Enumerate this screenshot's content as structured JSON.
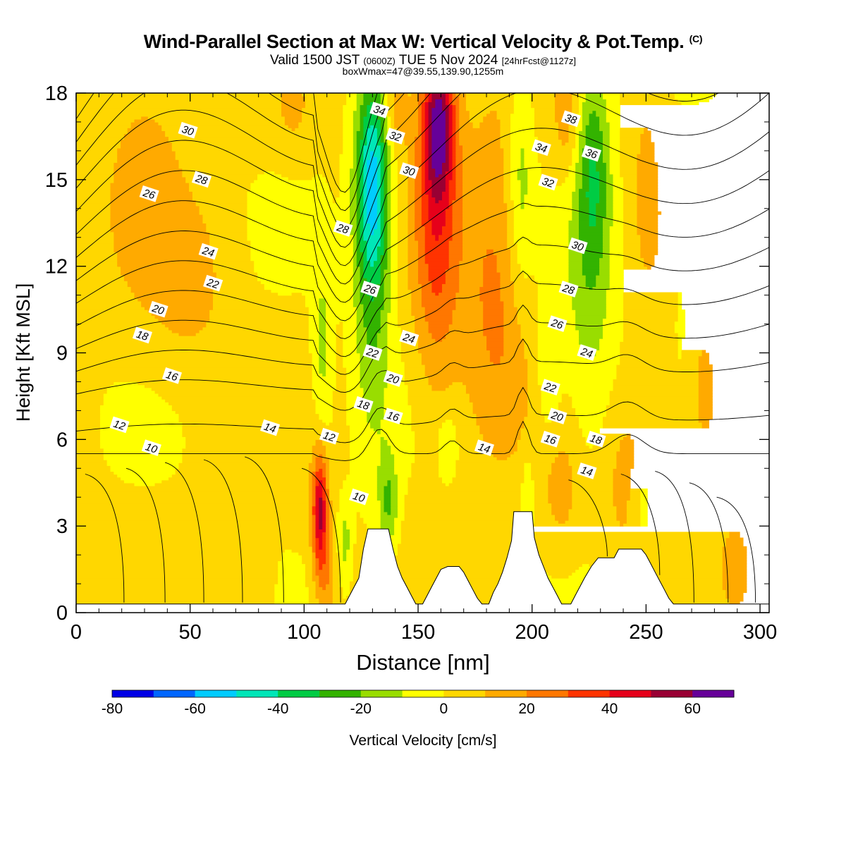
{
  "header": {
    "title_main": "Wind-Parallel Section at Max W: Vertical Velocity & Pot.Temp.",
    "title_copyright": "(C)",
    "subtitle_valid": "Valid 1500 JST",
    "subtitle_utc": "(0600Z)",
    "subtitle_date": "TUE 5 Nov 2024",
    "subtitle_fcst": "[24hrFcst@1127z]",
    "box_info": "boxWmax=47@39.55,139.90,1255m"
  },
  "chart_data": {
    "type": "heatmap",
    "xlabel": "Distance [nm]",
    "ylabel": "Height [Kft MSL]",
    "xlim": [
      0,
      304
    ],
    "ylim": [
      0,
      18
    ],
    "xticks": [
      0,
      50,
      100,
      150,
      200,
      250,
      300
    ],
    "yticks": [
      0,
      3,
      6,
      9,
      12,
      15,
      18
    ],
    "colorbar": {
      "label": "Vertical Velocity [cm/s]",
      "min": -80,
      "max": 70,
      "tick_values": [
        -80,
        -60,
        -40,
        -20,
        0,
        20,
        40,
        60
      ],
      "colors": [
        "#0000e6",
        "#0066ff",
        "#00ccff",
        "#00e6b8",
        "#00cc44",
        "#33b300",
        "#99dd00",
        "#ffff00",
        "#ffd700",
        "#ffaa00",
        "#ff7700",
        "#ff3300",
        "#e6001a",
        "#990033",
        "#660099"
      ]
    },
    "w_features": [
      {
        "x": 107,
        "z": 3.5,
        "w": 52,
        "dx": 2.5,
        "dz": 1.5
      },
      {
        "x": 159,
        "z": 17.0,
        "w": 48,
        "dx": 5,
        "dz": 1.8
      },
      {
        "x": 158,
        "z": 13.5,
        "w": 30,
        "dx": 7,
        "dz": 4
      },
      {
        "x": 130,
        "z": 15.0,
        "w": -45,
        "dx": 5,
        "dz": 2.5
      },
      {
        "x": 130,
        "z": 11.5,
        "w": -22,
        "dx": 6,
        "dz": 4
      },
      {
        "x": 108,
        "z": 9.0,
        "w": -15,
        "dx": 3,
        "dz": 2.5
      },
      {
        "x": 137,
        "z": 3.8,
        "w": -22,
        "dx": 3,
        "dz": 1.2
      },
      {
        "x": 118,
        "z": 2.5,
        "w": -15,
        "dx": 2,
        "dz": 1.0
      },
      {
        "x": 195,
        "z": 15.0,
        "w": -18,
        "dx": 4,
        "dz": 3
      },
      {
        "x": 227,
        "z": 15.5,
        "w": -25,
        "dx": 5,
        "dz": 2.5
      },
      {
        "x": 225,
        "z": 11.0,
        "w": -15,
        "dx": 8,
        "dz": 4
      },
      {
        "x": 207,
        "z": 8.5,
        "w": -14,
        "dx": 4,
        "dz": 2
      },
      {
        "x": 163,
        "z": 5.8,
        "w": -13,
        "dx": 3,
        "dz": 0.8
      },
      {
        "x": 198,
        "z": 4.3,
        "w": -13,
        "dx": 2,
        "dz": 1.0
      },
      {
        "x": 248,
        "z": 3.8,
        "w": -14,
        "dx": 4,
        "dz": 1.2
      },
      {
        "x": 265,
        "z": 10.0,
        "w": -10,
        "dx": 2,
        "dz": 1.5
      },
      {
        "x": 30,
        "z": 15.0,
        "w": 12,
        "dx": 12,
        "dz": 3
      },
      {
        "x": 50,
        "z": 11.5,
        "w": 12,
        "dx": 12,
        "dz": 2
      },
      {
        "x": 140,
        "z": 17.5,
        "w": 18,
        "dx": 4,
        "dz": 1.0
      },
      {
        "x": 183,
        "z": 13.0,
        "w": 14,
        "dx": 10,
        "dz": 4
      },
      {
        "x": 185,
        "z": 9.0,
        "w": 10,
        "dx": 12,
        "dz": 3
      },
      {
        "x": 243,
        "z": 4.5,
        "w": 14,
        "dx": 8,
        "dz": 2
      },
      {
        "x": 213,
        "z": 4.2,
        "w": 12,
        "dx": 6,
        "dz": 1.5
      },
      {
        "x": 275,
        "z": 7.0,
        "w": 12,
        "dx": 12,
        "dz": 3
      },
      {
        "x": 215,
        "z": 17.0,
        "w": 14,
        "dx": 4,
        "dz": 1.5
      },
      {
        "x": 95,
        "z": 17.5,
        "w": 10,
        "dx": 5,
        "dz": 1.0
      },
      {
        "x": 80,
        "z": 1.2,
        "w": 10,
        "dx": 4,
        "dz": 1.0
      },
      {
        "x": 290,
        "z": 1.5,
        "w": 10,
        "dx": 5,
        "dz": 1.2
      },
      {
        "x": 110,
        "z": 1.0,
        "w": 14,
        "dx": 3,
        "dz": 1.0
      },
      {
        "x": 250,
        "z": 15.0,
        "w": 10,
        "dx": 5,
        "dz": 3
      }
    ],
    "terrain": [
      [
        0,
        0.3
      ],
      [
        118,
        0.3
      ],
      [
        120,
        0.6
      ],
      [
        122,
        0.9
      ],
      [
        124,
        1.2
      ],
      [
        126,
        2.2
      ],
      [
        128,
        2.9
      ],
      [
        137,
        2.9
      ],
      [
        139,
        2.2
      ],
      [
        141,
        1.6
      ],
      [
        143,
        1.2
      ],
      [
        145,
        0.9
      ],
      [
        147,
        0.6
      ],
      [
        149,
        0.3
      ],
      [
        152,
        0.3
      ],
      [
        154,
        0.6
      ],
      [
        156,
        0.9
      ],
      [
        158,
        1.2
      ],
      [
        160,
        1.5
      ],
      [
        163,
        1.6
      ],
      [
        168,
        1.6
      ],
      [
        170,
        1.4
      ],
      [
        172,
        1.1
      ],
      [
        174,
        0.8
      ],
      [
        176,
        0.5
      ],
      [
        178,
        0.3
      ],
      [
        181,
        0.3
      ],
      [
        183,
        0.7
      ],
      [
        185,
        1.0
      ],
      [
        187,
        1.4
      ],
      [
        189,
        1.9
      ],
      [
        191,
        2.5
      ],
      [
        192,
        3.5
      ],
      [
        200,
        3.5
      ],
      [
        201,
        2.6
      ],
      [
        203,
        2.0
      ],
      [
        205,
        1.6
      ],
      [
        207,
        1.2
      ],
      [
        209,
        0.9
      ],
      [
        211,
        0.6
      ],
      [
        213,
        0.3
      ],
      [
        217,
        0.3
      ],
      [
        219,
        0.6
      ],
      [
        221,
        0.9
      ],
      [
        223,
        1.2
      ],
      [
        226,
        1.6
      ],
      [
        229,
        1.9
      ],
      [
        236,
        1.9
      ],
      [
        238,
        2.2
      ],
      [
        248,
        2.2
      ],
      [
        250,
        2.0
      ],
      [
        252,
        1.7
      ],
      [
        254,
        1.4
      ],
      [
        256,
        1.1
      ],
      [
        258,
        0.8
      ],
      [
        260,
        0.5
      ],
      [
        262,
        0.3
      ],
      [
        304,
        0.3
      ]
    ],
    "theta_contours": {
      "levels": [
        10,
        12,
        14,
        16,
        18,
        20,
        22,
        24,
        26,
        28,
        30,
        32,
        34,
        36,
        38
      ],
      "labels": [
        {
          "text": "30",
          "x": 49,
          "z": 16.7
        },
        {
          "text": "28",
          "x": 55,
          "z": 15.0
        },
        {
          "text": "26",
          "x": 32,
          "z": 14.5
        },
        {
          "text": "24",
          "x": 58,
          "z": 12.5
        },
        {
          "text": "22",
          "x": 60,
          "z": 11.4
        },
        {
          "text": "20",
          "x": 36,
          "z": 10.5
        },
        {
          "text": "18",
          "x": 29,
          "z": 9.6
        },
        {
          "text": "16",
          "x": 42,
          "z": 8.2
        },
        {
          "text": "12",
          "x": 19,
          "z": 6.5
        },
        {
          "text": "10",
          "x": 33,
          "z": 5.7
        },
        {
          "text": "14",
          "x": 85,
          "z": 6.4
        },
        {
          "text": "12",
          "x": 111,
          "z": 6.1
        },
        {
          "text": "10",
          "x": 124,
          "z": 4.0
        },
        {
          "text": "34",
          "x": 133,
          "z": 17.4
        },
        {
          "text": "32",
          "x": 140,
          "z": 16.5
        },
        {
          "text": "30",
          "x": 146,
          "z": 15.3
        },
        {
          "text": "28",
          "x": 117,
          "z": 13.3
        },
        {
          "text": "26",
          "x": 129,
          "z": 11.2
        },
        {
          "text": "24",
          "x": 146,
          "z": 9.5
        },
        {
          "text": "22",
          "x": 130,
          "z": 9.0
        },
        {
          "text": "20",
          "x": 139,
          "z": 8.1
        },
        {
          "text": "18",
          "x": 126,
          "z": 7.2
        },
        {
          "text": "16",
          "x": 139,
          "z": 6.8
        },
        {
          "text": "14",
          "x": 179,
          "z": 5.7
        },
        {
          "text": "38",
          "x": 217,
          "z": 17.1
        },
        {
          "text": "34",
          "x": 204,
          "z": 16.1
        },
        {
          "text": "36",
          "x": 226,
          "z": 15.9
        },
        {
          "text": "32",
          "x": 207,
          "z": 14.9
        },
        {
          "text": "30",
          "x": 220,
          "z": 12.7
        },
        {
          "text": "28",
          "x": 216,
          "z": 11.2
        },
        {
          "text": "26",
          "x": 211,
          "z": 10.0
        },
        {
          "text": "24",
          "x": 224,
          "z": 9.0
        },
        {
          "text": "22",
          "x": 208,
          "z": 7.8
        },
        {
          "text": "20",
          "x": 211,
          "z": 6.8
        },
        {
          "text": "16",
          "x": 208,
          "z": 6.0
        },
        {
          "text": "18",
          "x": 228,
          "z": 6.0
        },
        {
          "text": "14",
          "x": 224,
          "z": 4.9
        }
      ]
    }
  }
}
